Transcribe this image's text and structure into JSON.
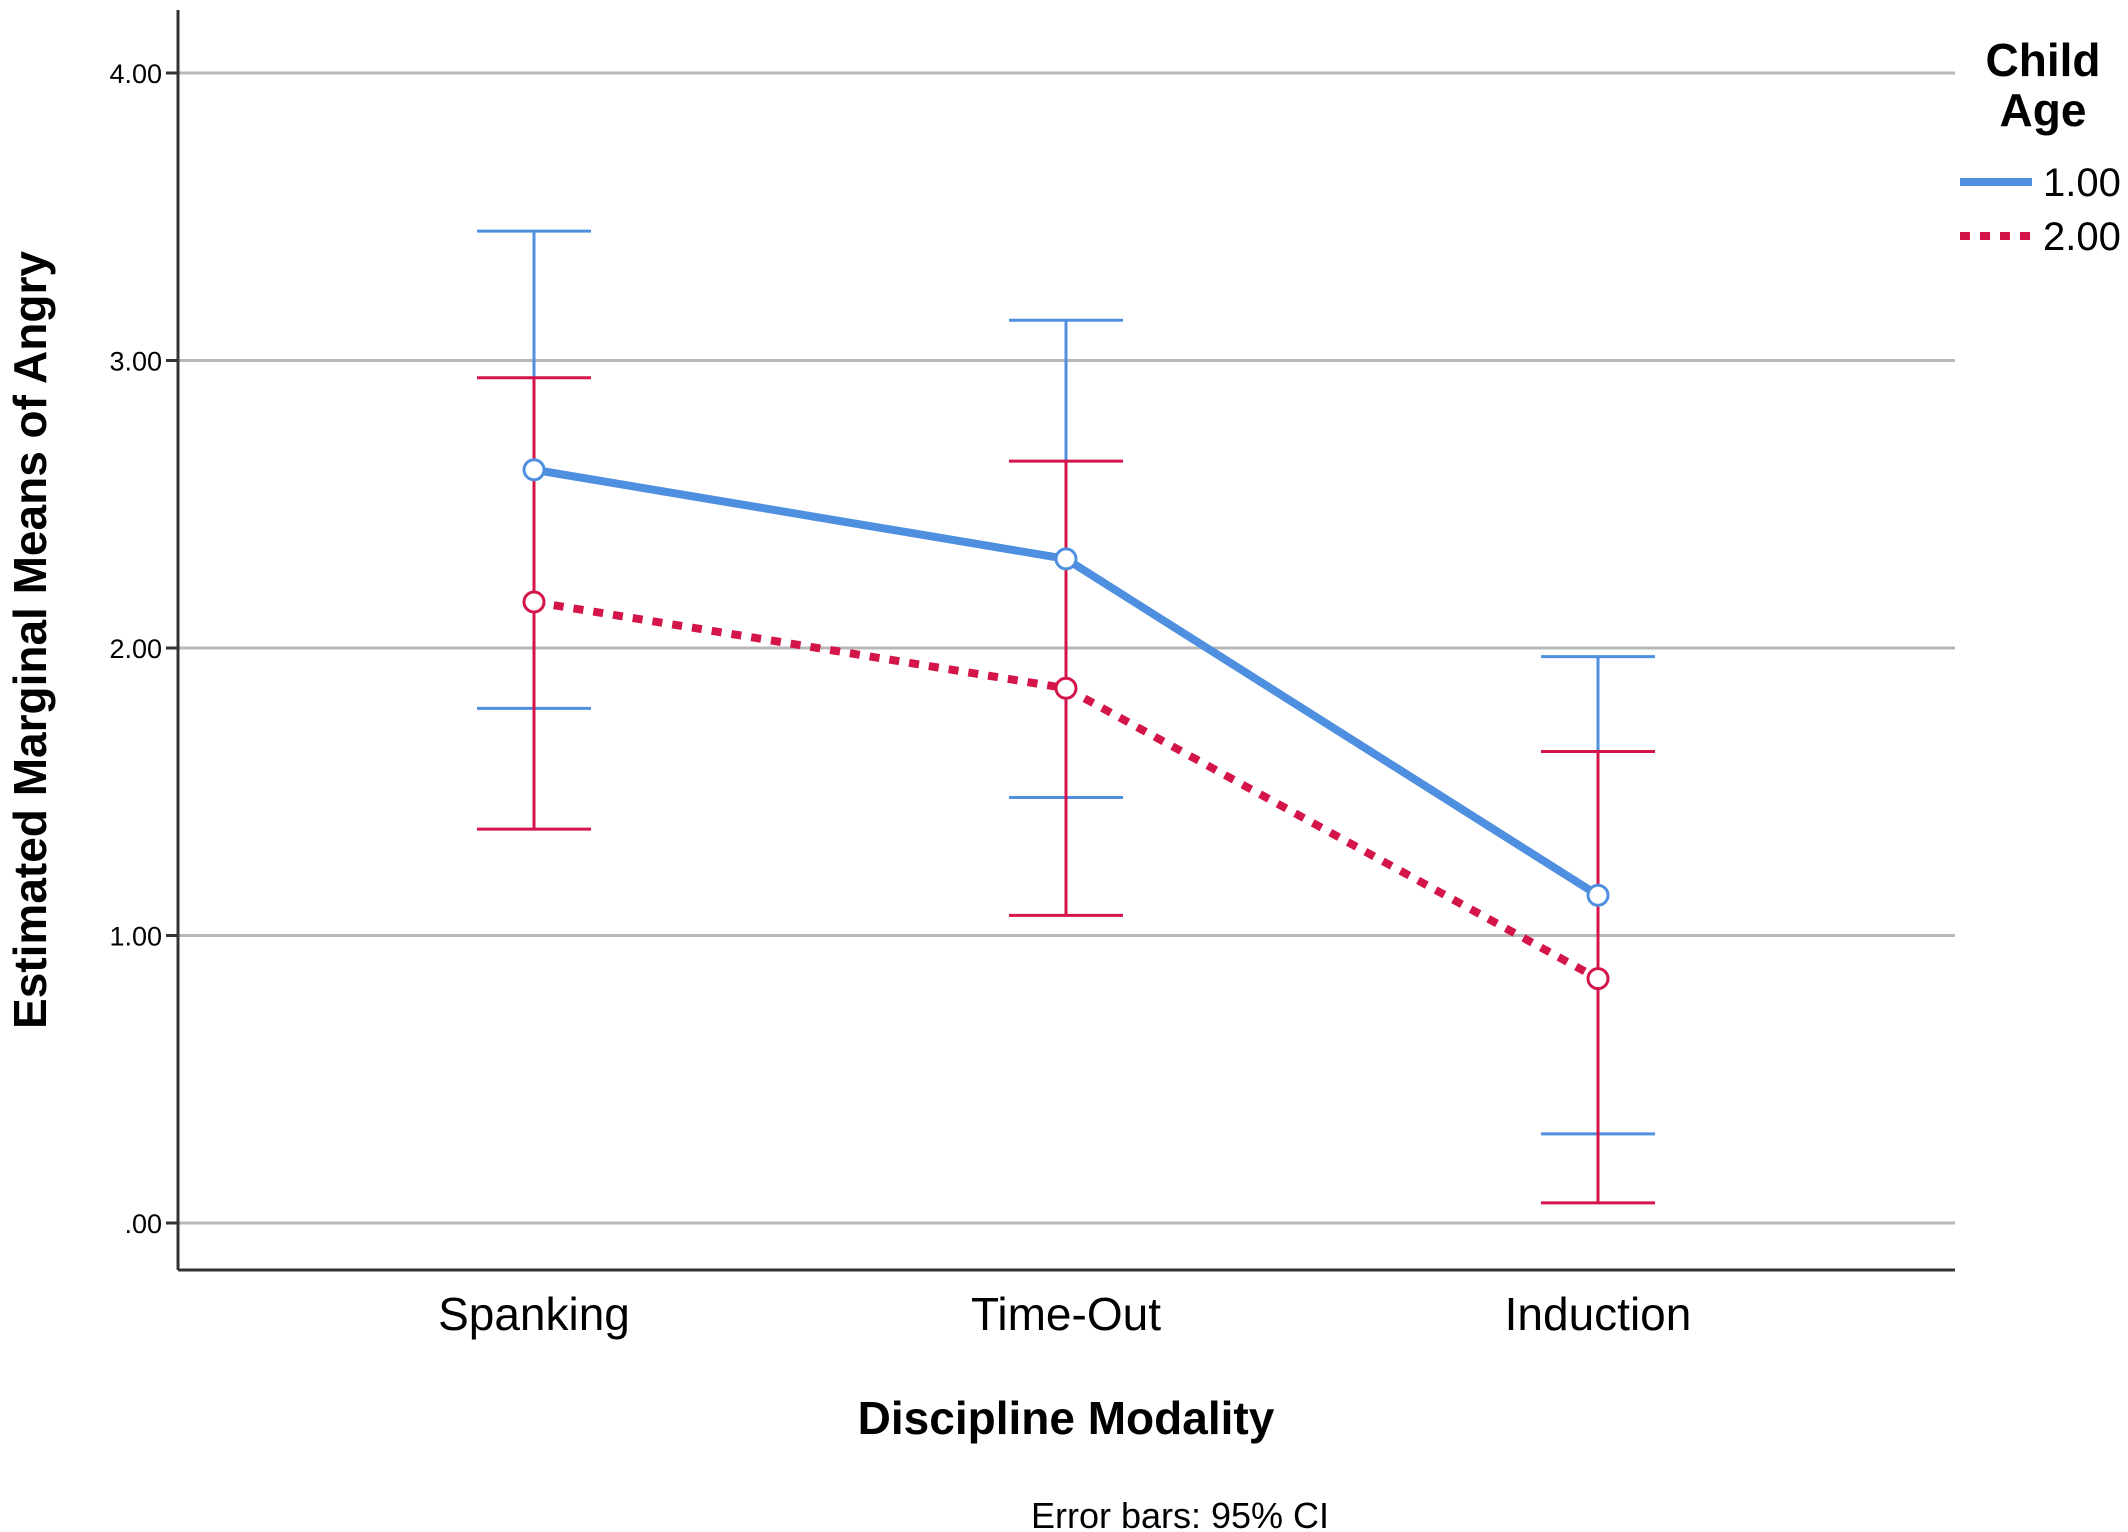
{
  "chart_data": {
    "type": "line",
    "title": "",
    "xlabel": "Discipline Modality",
    "ylabel": "Estimated Marginal Means of Angry",
    "categories": [
      "Spanking",
      "Time-Out",
      "Induction"
    ],
    "ylim": [
      -0.16,
      4.12
    ],
    "yticks": [
      0,
      1,
      2,
      3,
      4
    ],
    "ytick_labels": [
      ".00",
      "1.00",
      "2.00",
      "3.00",
      "4.00"
    ],
    "grid": true,
    "legend": {
      "title_line1": "Child",
      "title_line2": "Age",
      "placement": "top-right"
    },
    "note": "Error bars: 95% CI",
    "series": [
      {
        "name": "1.00",
        "color": "#4e8fe0",
        "style": "solid",
        "values": [
          2.62,
          2.31,
          1.14
        ],
        "ci_low": [
          1.79,
          1.48,
          0.31
        ],
        "ci_high": [
          3.45,
          3.14,
          1.97
        ]
      },
      {
        "name": "2.00",
        "color": "#d4154a",
        "style": "dotted",
        "values": [
          2.16,
          1.86,
          0.85
        ],
        "ci_low": [
          1.37,
          1.07,
          0.07
        ],
        "ci_high": [
          2.94,
          2.65,
          1.64
        ]
      }
    ]
  }
}
